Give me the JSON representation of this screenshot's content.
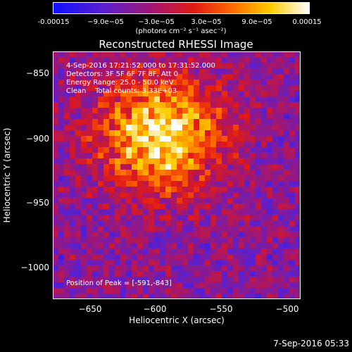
{
  "colorbar": {
    "tick_labels": [
      "-0.00015",
      "−9.0e−05",
      "−3.0e−05",
      "3.0e−05",
      "9.0e−05",
      "0.00015"
    ],
    "unit": "(photons cm⁻² s⁻¹ asec⁻²)",
    "colormap": "rainbow-like: blue, purple, red, orange, yellow, white"
  },
  "chart_data": {
    "type": "heatmap",
    "title": "Reconstructed RHESSI Image",
    "xlabel": "Heliocentric X (arcsec)",
    "ylabel": "Heliocentric Y (arcsec)",
    "xlim": [
      -675,
      -488
    ],
    "ylim": [
      -1023,
      -836
    ],
    "x_ticks": [
      -650,
      -600,
      -550,
      -500
    ],
    "y_ticks": [
      -850,
      -900,
      -950,
      -1000
    ],
    "x_tick_labels": [
      "−650",
      "−600",
      "−550",
      "−500"
    ],
    "y_tick_labels": [
      "−850",
      "−900",
      "−950",
      "−1000"
    ],
    "value_range": [
      -0.00015,
      0.00015
    ],
    "peak": {
      "x": -591,
      "y": -843
    },
    "annotations": [
      "4-Sep-2016 17:21:52.000 to 17:31:52.000",
      "Detectors: 3F 5F 6F 7F 8F, Att 0",
      "Energy Range: 25.0 - 50.0 keV",
      "Clean    Total counts: 3.33E+03"
    ],
    "peak_label": "Position of Peak = [-591,-843]"
  },
  "footer": {
    "date": "7-Sep-2016 05:33"
  }
}
